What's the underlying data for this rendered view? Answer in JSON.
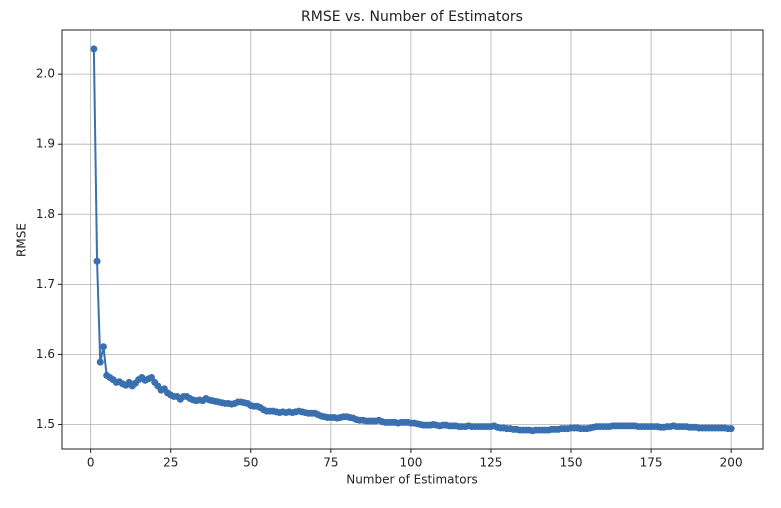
{
  "chart_data": {
    "type": "line",
    "title": "RMSE vs. Number of Estimators",
    "x_label": "Number of Estimators",
    "y_label": "RMSE",
    "x": [
      1,
      2,
      3,
      4,
      5,
      6,
      7,
      8,
      9,
      10,
      11,
      12,
      13,
      14,
      15,
      16,
      17,
      18,
      19,
      20,
      21,
      22,
      23,
      24,
      25,
      26,
      27,
      28,
      29,
      30,
      31,
      32,
      33,
      34,
      35,
      36,
      37,
      38,
      39,
      40,
      41,
      42,
      43,
      44,
      45,
      46,
      47,
      48,
      49,
      50,
      51,
      52,
      53,
      54,
      55,
      56,
      57,
      58,
      59,
      60,
      61,
      62,
      63,
      64,
      65,
      66,
      67,
      68,
      69,
      70,
      71,
      72,
      73,
      74,
      75,
      76,
      77,
      78,
      79,
      80,
      81,
      82,
      83,
      84,
      85,
      86,
      87,
      88,
      89,
      90,
      91,
      92,
      93,
      94,
      95,
      96,
      97,
      98,
      99,
      100,
      101,
      102,
      103,
      104,
      105,
      106,
      107,
      108,
      109,
      110,
      111,
      112,
      113,
      114,
      115,
      116,
      117,
      118,
      119,
      120,
      121,
      122,
      123,
      124,
      125,
      126,
      127,
      128,
      129,
      130,
      131,
      132,
      133,
      134,
      135,
      136,
      137,
      138,
      139,
      140,
      141,
      142,
      143,
      144,
      145,
      146,
      147,
      148,
      149,
      150,
      151,
      152,
      153,
      154,
      155,
      156,
      157,
      158,
      159,
      160,
      161,
      162,
      163,
      164,
      165,
      166,
      167,
      168,
      169,
      170,
      171,
      172,
      173,
      174,
      175,
      176,
      177,
      178,
      179,
      180,
      181,
      182,
      183,
      184,
      185,
      186,
      187,
      188,
      189,
      190,
      191,
      192,
      193,
      194,
      195,
      196,
      197,
      198,
      199,
      200
    ],
    "series": [
      {
        "name": "RMSE",
        "color": "#3a6fb0",
        "values": [
          2.036,
          1.733,
          1.589,
          1.611,
          1.57,
          1.567,
          1.564,
          1.56,
          1.561,
          1.558,
          1.556,
          1.56,
          1.555,
          1.559,
          1.564,
          1.567,
          1.563,
          1.565,
          1.567,
          1.56,
          1.555,
          1.549,
          1.551,
          1.545,
          1.542,
          1.54,
          1.54,
          1.536,
          1.54,
          1.54,
          1.537,
          1.535,
          1.534,
          1.535,
          1.534,
          1.537,
          1.535,
          1.534,
          1.533,
          1.532,
          1.531,
          1.53,
          1.53,
          1.529,
          1.53,
          1.532,
          1.532,
          1.531,
          1.53,
          1.527,
          1.526,
          1.526,
          1.524,
          1.521,
          1.519,
          1.519,
          1.519,
          1.518,
          1.517,
          1.518,
          1.517,
          1.518,
          1.517,
          1.518,
          1.519,
          1.518,
          1.517,
          1.516,
          1.516,
          1.516,
          1.514,
          1.512,
          1.511,
          1.51,
          1.51,
          1.51,
          1.509,
          1.51,
          1.511,
          1.511,
          1.51,
          1.509,
          1.507,
          1.506,
          1.506,
          1.505,
          1.505,
          1.505,
          1.505,
          1.506,
          1.504,
          1.503,
          1.503,
          1.503,
          1.503,
          1.502,
          1.503,
          1.503,
          1.503,
          1.502,
          1.502,
          1.501,
          1.5,
          1.499,
          1.499,
          1.499,
          1.5,
          1.499,
          1.498,
          1.499,
          1.499,
          1.498,
          1.498,
          1.498,
          1.497,
          1.497,
          1.497,
          1.498,
          1.497,
          1.497,
          1.497,
          1.497,
          1.497,
          1.497,
          1.497,
          1.498,
          1.496,
          1.495,
          1.495,
          1.494,
          1.494,
          1.493,
          1.493,
          1.492,
          1.492,
          1.492,
          1.492,
          1.491,
          1.492,
          1.492,
          1.492,
          1.492,
          1.492,
          1.493,
          1.493,
          1.493,
          1.494,
          1.494,
          1.494,
          1.495,
          1.495,
          1.495,
          1.494,
          1.494,
          1.494,
          1.495,
          1.496,
          1.497,
          1.497,
          1.497,
          1.497,
          1.497,
          1.498,
          1.498,
          1.498,
          1.498,
          1.498,
          1.498,
          1.498,
          1.498,
          1.497,
          1.497,
          1.497,
          1.497,
          1.497,
          1.497,
          1.497,
          1.496,
          1.496,
          1.497,
          1.497,
          1.498,
          1.497,
          1.497,
          1.497,
          1.497,
          1.496,
          1.496,
          1.496,
          1.495,
          1.495,
          1.495,
          1.495,
          1.495,
          1.495,
          1.495,
          1.495,
          1.495,
          1.494,
          1.494
        ]
      }
    ],
    "xlim": [
      -8.95,
      209.95
    ],
    "ylim": [
      1.465,
      2.063
    ],
    "xticks": [
      0,
      25,
      50,
      75,
      100,
      125,
      150,
      175,
      200
    ],
    "yticks": [
      1.5,
      1.6,
      1.7,
      1.8,
      1.9,
      {
        "value": 2,
        "label": "2.0"
      }
    ],
    "grid": true
  }
}
